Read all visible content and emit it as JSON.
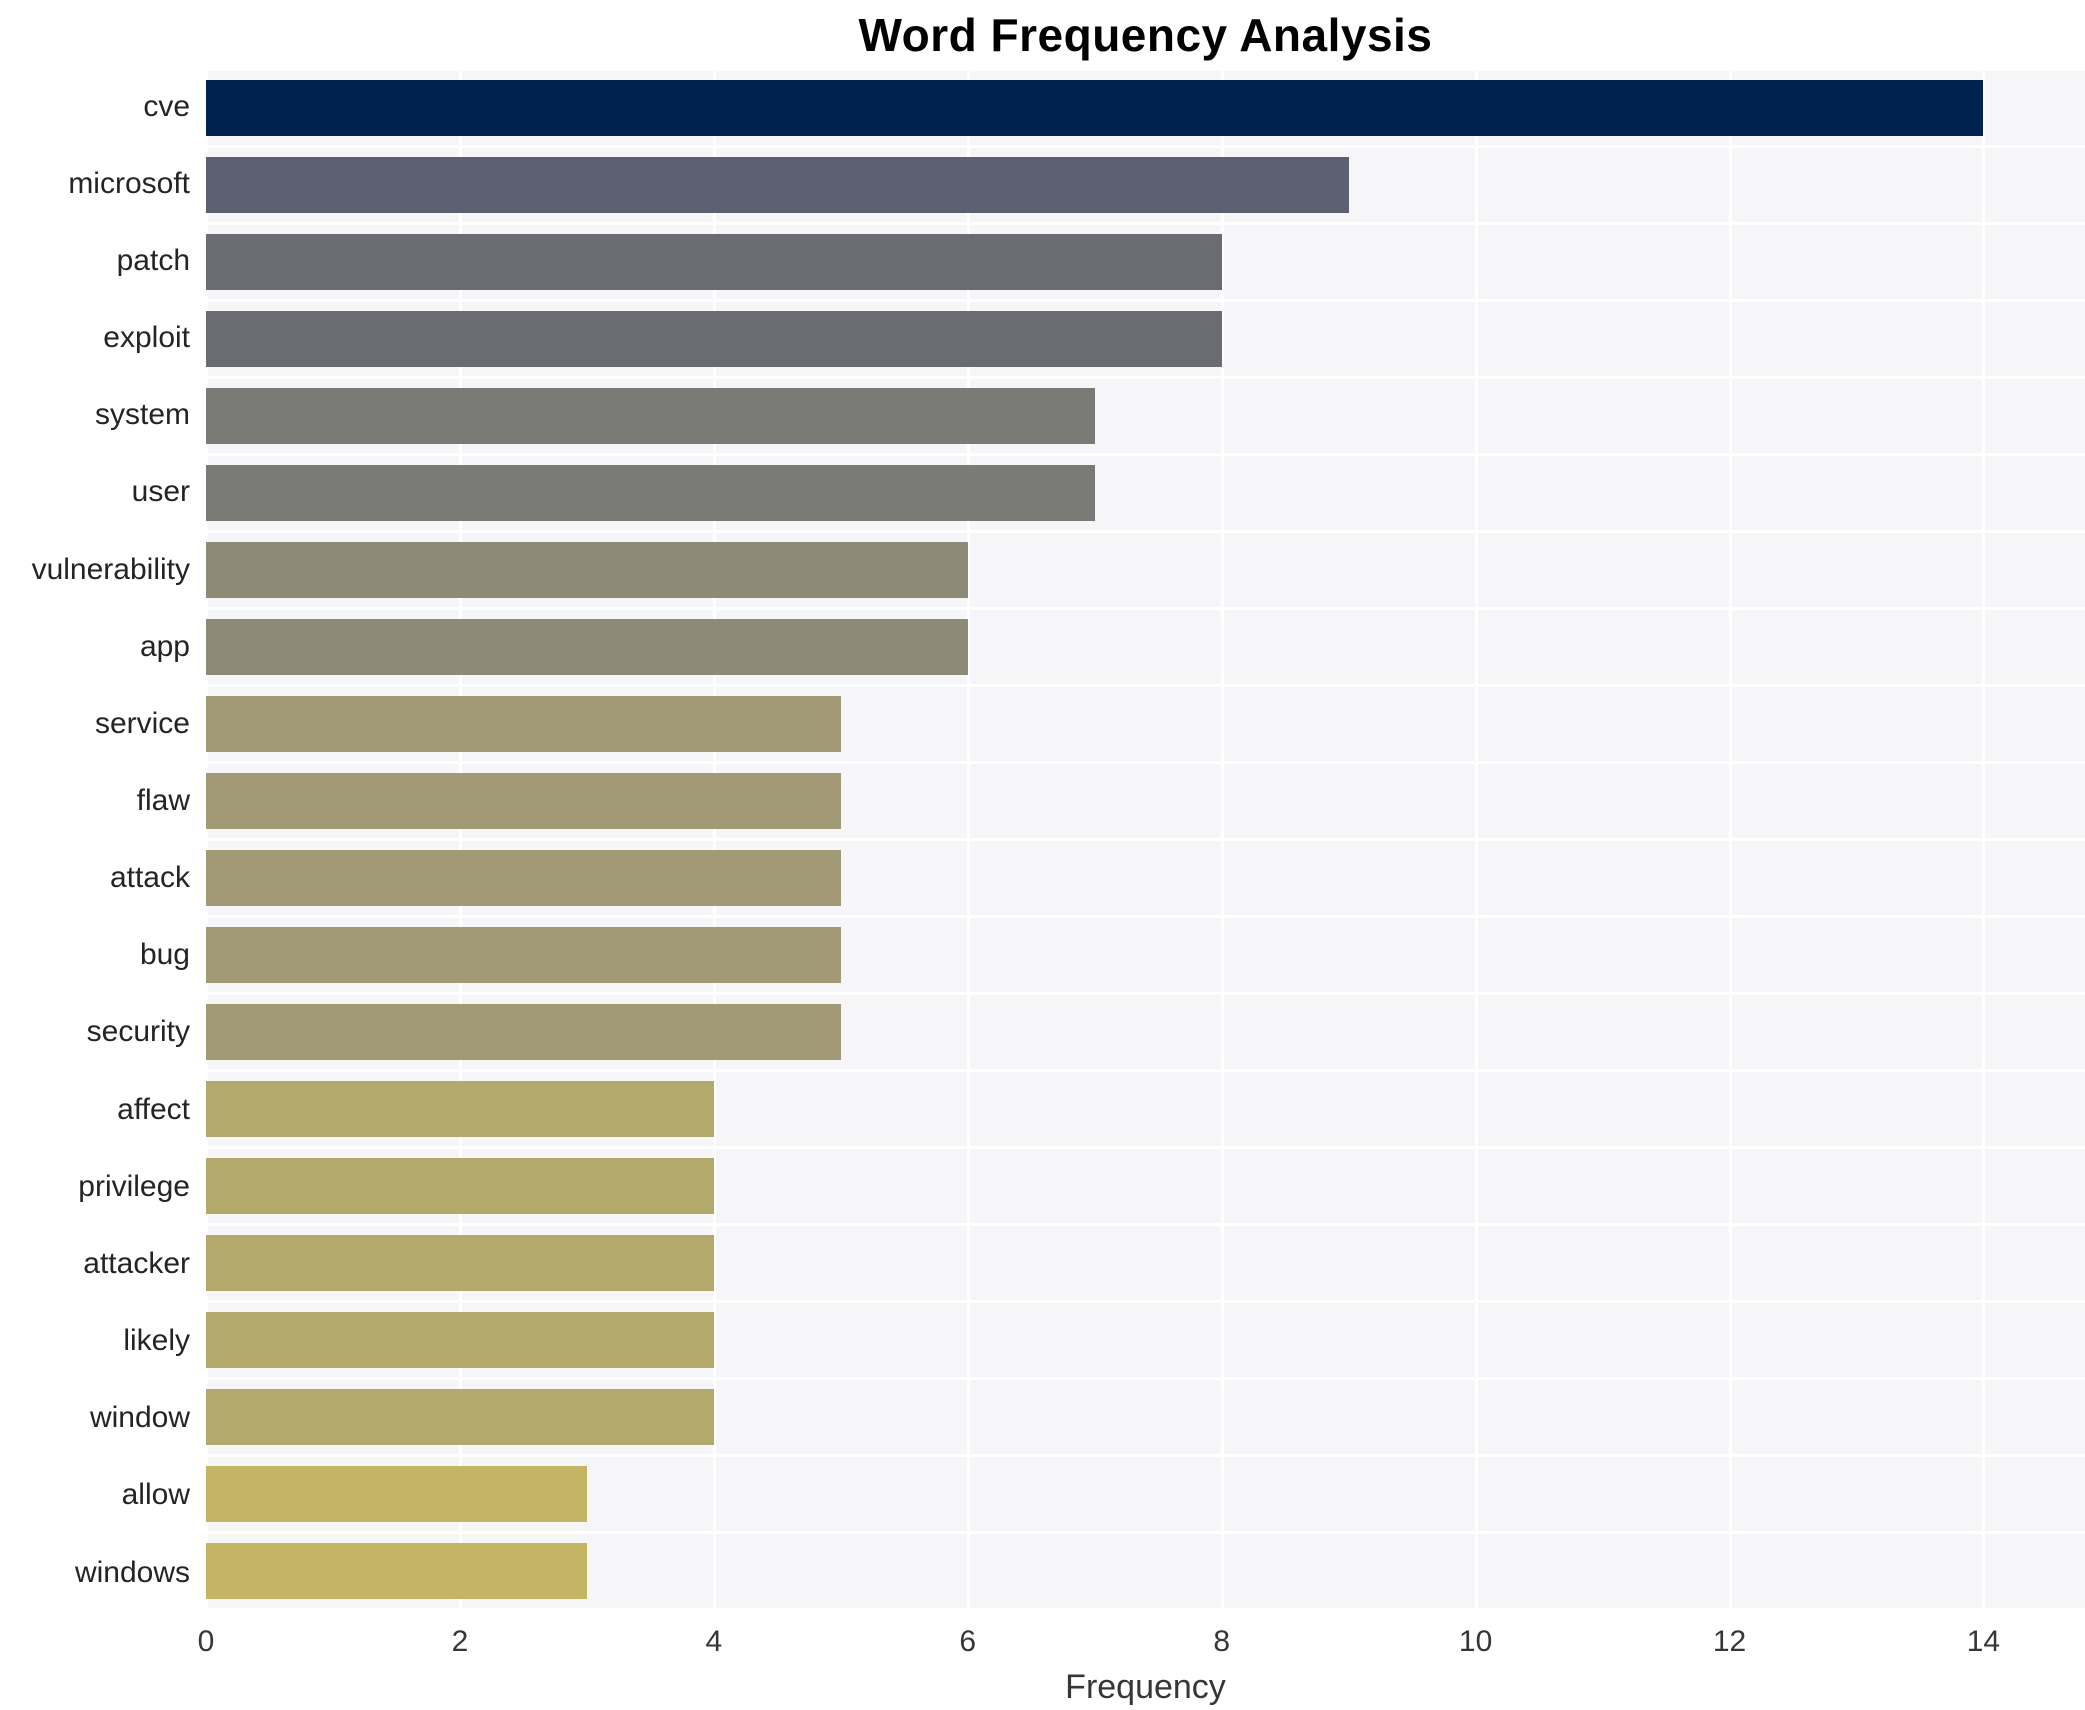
{
  "chart_data": {
    "type": "bar",
    "orientation": "horizontal",
    "title": "Word Frequency Analysis",
    "xlabel": "Frequency",
    "categories": [
      "cve",
      "microsoft",
      "patch",
      "exploit",
      "system",
      "user",
      "vulnerability",
      "app",
      "service",
      "flaw",
      "attack",
      "bug",
      "security",
      "affect",
      "privilege",
      "attacker",
      "likely",
      "window",
      "allow",
      "windows"
    ],
    "values": [
      14,
      9,
      8,
      8,
      7,
      7,
      6,
      6,
      5,
      5,
      5,
      5,
      5,
      4,
      4,
      4,
      4,
      4,
      3,
      3
    ],
    "bar_colors": [
      "#00224e",
      "#5c6070",
      "#6a6c71",
      "#6a6c71",
      "#7a7b77",
      "#7a7b77",
      "#8e8a78",
      "#8e8a78",
      "#a29a74",
      "#a29a74",
      "#a29a74",
      "#a29a74",
      "#a29a74",
      "#b2a96a",
      "#b2a96a",
      "#b2a96a",
      "#b2a96a",
      "#b2a96a",
      "#c4b565",
      "#c4b565"
    ],
    "x_ticks": [
      0,
      2,
      4,
      6,
      8,
      10,
      12,
      14
    ],
    "xlim": [
      0,
      14.8
    ],
    "grid": true,
    "legend": "none",
    "plot_bg_color": "#f6f6f8",
    "grid_color": "#ffffff",
    "title_color": "#000000",
    "axis_text_color": "#363636"
  }
}
